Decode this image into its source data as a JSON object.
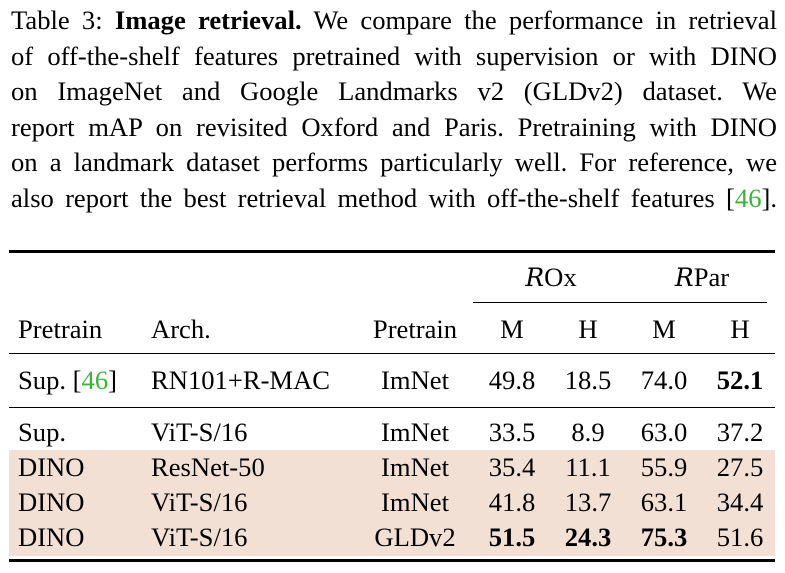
{
  "caption": {
    "label": "Table 3:",
    "title": "Image retrieval.",
    "line1_rest": "We compare the performance in retrieval",
    "line2": "of off-the-shelf features pretrained with supervision or with DINO",
    "line3": "on ImageNet and Google Landmarks v2 (GLDv2) dataset.  We",
    "line4": "report mAP on revisited Oxford and Paris. Pretraining with DINO",
    "line5": "on a landmark dataset performs particularly well. For reference, we",
    "line6_pre": "also report the best retrieval method with off-the-shelf features [",
    "line6_cite": "46",
    "line6_post": "]."
  },
  "table": {
    "group_headers": {
      "rox_script": "R",
      "rox_rest": "Ox",
      "rpar_script": "R",
      "rpar_rest": "Par"
    },
    "headers": {
      "pretrain": "Pretrain",
      "arch": "Arch.",
      "pretrain2": "Pretrain",
      "rox_m": "M",
      "rox_h": "H",
      "rpar_m": "M",
      "rpar_h": "H"
    },
    "rows": [
      {
        "pretrain": "Sup. [",
        "pretrain_cite": "46",
        "pretrain_close": "]",
        "arch": "RN101+R-MAC",
        "data": "ImNet",
        "rox_m": "49.8",
        "rox_h": "18.5",
        "rpar_m": "74.0",
        "rpar_h": "52.1"
      },
      {
        "pretrain": "Sup.",
        "arch": "ViT-S/16",
        "data": "ImNet",
        "rox_m": "33.5",
        "rox_h": "8.9",
        "rpar_m": "63.0",
        "rpar_h": "37.2"
      },
      {
        "pretrain": "DINO",
        "arch": "ResNet-50",
        "data": "ImNet",
        "rox_m": "35.4",
        "rox_h": "11.1",
        "rpar_m": "55.9",
        "rpar_h": "27.5"
      },
      {
        "pretrain": "DINO",
        "arch": "ViT-S/16",
        "data": "ImNet",
        "rox_m": "41.8",
        "rox_h": "13.7",
        "rpar_m": "63.1",
        "rpar_h": "34.4"
      },
      {
        "pretrain": "DINO",
        "arch": "ViT-S/16",
        "data": "GLDv2",
        "rox_m": "51.5",
        "rox_h": "24.3",
        "rpar_m": "75.3",
        "rpar_h": "51.6"
      }
    ]
  },
  "colors": {
    "highlight": "#f3e0d5",
    "citation": "#3cb43c"
  }
}
